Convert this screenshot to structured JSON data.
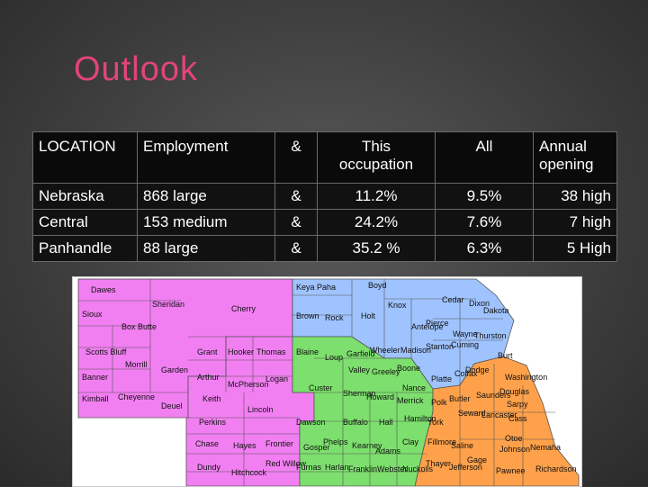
{
  "slide": {
    "title": "Outlook"
  },
  "table": {
    "headers": [
      "LOCATION",
      "Employment",
      "&",
      "This occupation",
      "All",
      "Annual opening"
    ],
    "rows": [
      [
        "Nebraska",
        "868 large",
        "&",
        "11.2%",
        "9.5%",
        "38 high"
      ],
      [
        "Central",
        "153 medium",
        "&",
        "24.2%",
        "7.6%",
        "7 high"
      ],
      [
        "Panhandle",
        "88 large",
        "&",
        "35.2 %",
        "6.3%",
        "5 High"
      ]
    ]
  },
  "map": {
    "region_colors": {
      "panhandle": "#f27ff2",
      "central": "#7ddf6d",
      "northeast": "#9fc3ff",
      "southeast": "#ffa14a"
    },
    "counties": [
      "Dawes",
      "Sheridan",
      "Cherry",
      "Keya Paha",
      "Boyd",
      "Knox",
      "Cedar",
      "Dixon",
      "Dakota",
      "Sioux",
      "Box Butte",
      "Brown",
      "Rock",
      "Holt",
      "Antelope",
      "Pierce",
      "Wayne",
      "Thurston",
      "Scotts Bluff",
      "Morrill",
      "Garden",
      "Grant",
      "Hooker",
      "Thomas",
      "Blaine",
      "Loup",
      "Garfield",
      "Wheeler",
      "Madison",
      "Stanton",
      "Cuming",
      "Burt",
      "Banner",
      "Kimball",
      "Cheyenne",
      "Arthur",
      "McPherson",
      "Logan",
      "Valley",
      "Greeley",
      "Boone",
      "Platte",
      "Colfax",
      "Dodge",
      "Washington",
      "Deuel",
      "Keith",
      "Lincoln",
      "Custer",
      "Sherman",
      "Howard",
      "Nance",
      "Merrick",
      "Polk",
      "Butler",
      "Saunders",
      "Douglas",
      "Sarpy",
      "Perkins",
      "Dawson",
      "Buffalo",
      "Hall",
      "Hamilton",
      "York",
      "Seward",
      "Lancaster",
      "Cass",
      "Chase",
      "Hayes",
      "Frontier",
      "Gosper",
      "Phelps",
      "Kearney",
      "Adams",
      "Clay",
      "Fillmore",
      "Saline",
      "Otoe",
      "Dundy",
      "Hitchcock",
      "Red Willow",
      "Furnas",
      "Harlan",
      "Franklin",
      "Webster",
      "Nuckolls",
      "Thayer",
      "Jefferson",
      "Gage",
      "Johnson",
      "Nemaha",
      "Pawnee",
      "Richardson"
    ]
  }
}
